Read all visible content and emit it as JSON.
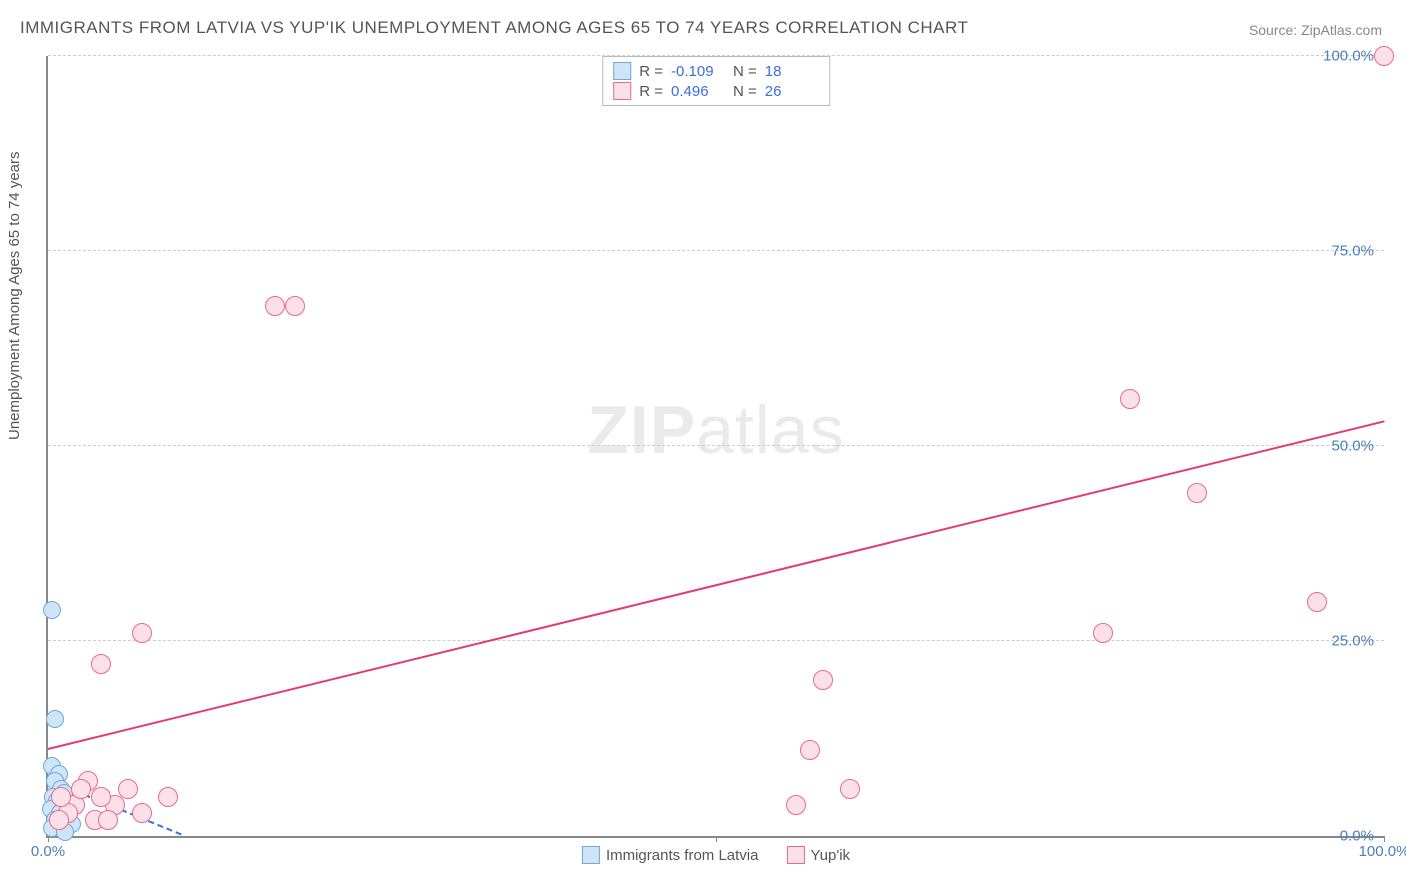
{
  "title": "IMMIGRANTS FROM LATVIA VS YUP'IK UNEMPLOYMENT AMONG AGES 65 TO 74 YEARS CORRELATION CHART",
  "source": "Source: ZipAtlas.com",
  "watermark_bold": "ZIP",
  "watermark_light": "atlas",
  "chart": {
    "type": "scatter",
    "ylabel": "Unemployment Among Ages 65 to 74 years",
    "xlim": [
      0,
      100
    ],
    "ylim": [
      0,
      100
    ],
    "background_color": "#ffffff",
    "grid_color": "#cccccc",
    "axis_color": "#888888",
    "tick_color": "#4a7ebb",
    "tick_fontsize": 15,
    "label_fontsize": 15,
    "title_fontsize": 17,
    "title_color": "#555555",
    "yticks": [
      {
        "v": 0,
        "label": "0.0%"
      },
      {
        "v": 25,
        "label": "25.0%"
      },
      {
        "v": 50,
        "label": "50.0%"
      },
      {
        "v": 75,
        "label": "75.0%"
      },
      {
        "v": 100,
        "label": "100.0%"
      }
    ],
    "xticks": [
      {
        "v": 0,
        "label": "0.0%"
      },
      {
        "v": 50,
        "label": ""
      },
      {
        "v": 100,
        "label": "100.0%"
      }
    ],
    "series": [
      {
        "name": "Immigrants from Latvia",
        "marker_fill": "#cfe4f7",
        "marker_stroke": "#6fa8dc",
        "marker_radius": 8,
        "trend_color": "#3a6fd8",
        "trend_dash": true,
        "R": "-0.109",
        "N": "18",
        "trend": {
          "x0": 0,
          "y0": 7,
          "x1": 10,
          "y1": 0
        },
        "points": [
          {
            "x": 0.3,
            "y": 29
          },
          {
            "x": 0.5,
            "y": 15
          },
          {
            "x": 0.3,
            "y": 9
          },
          {
            "x": 0.8,
            "y": 8
          },
          {
            "x": 0.5,
            "y": 7
          },
          {
            "x": 1.0,
            "y": 6
          },
          {
            "x": 1.2,
            "y": 5.5
          },
          {
            "x": 0.4,
            "y": 5
          },
          {
            "x": 0.7,
            "y": 4.5
          },
          {
            "x": 1.4,
            "y": 4
          },
          {
            "x": 0.2,
            "y": 3.5
          },
          {
            "x": 0.9,
            "y": 3
          },
          {
            "x": 1.6,
            "y": 3
          },
          {
            "x": 0.5,
            "y": 2
          },
          {
            "x": 1.1,
            "y": 2
          },
          {
            "x": 1.8,
            "y": 1.5
          },
          {
            "x": 0.3,
            "y": 1
          },
          {
            "x": 1.3,
            "y": 0.5
          }
        ]
      },
      {
        "name": "Yup'ik",
        "marker_fill": "#fbe0e8",
        "marker_stroke": "#e86a92",
        "marker_radius": 9,
        "trend_color": "#e33a72",
        "trend_dash": false,
        "R": "0.496",
        "N": "26",
        "trend": {
          "x0": 0,
          "y0": 11,
          "x1": 100,
          "y1": 53
        },
        "points": [
          {
            "x": 100,
            "y": 100
          },
          {
            "x": 17,
            "y": 68
          },
          {
            "x": 18.5,
            "y": 68
          },
          {
            "x": 81,
            "y": 56
          },
          {
            "x": 86,
            "y": 44
          },
          {
            "x": 95,
            "y": 30
          },
          {
            "x": 79,
            "y": 26
          },
          {
            "x": 7,
            "y": 26
          },
          {
            "x": 4,
            "y": 22
          },
          {
            "x": 58,
            "y": 20
          },
          {
            "x": 57,
            "y": 11
          },
          {
            "x": 60,
            "y": 6
          },
          {
            "x": 56,
            "y": 4
          },
          {
            "x": 9,
            "y": 5
          },
          {
            "x": 6,
            "y": 6
          },
          {
            "x": 5,
            "y": 4
          },
          {
            "x": 4,
            "y": 5
          },
          {
            "x": 7,
            "y": 3
          },
          {
            "x": 3,
            "y": 7
          },
          {
            "x": 3.5,
            "y": 2
          },
          {
            "x": 2,
            "y": 4
          },
          {
            "x": 2.5,
            "y": 6
          },
          {
            "x": 1.5,
            "y": 3
          },
          {
            "x": 1,
            "y": 5
          },
          {
            "x": 0.8,
            "y": 2
          },
          {
            "x": 4.5,
            "y": 2
          }
        ]
      }
    ],
    "stats_labels": {
      "R": "R =",
      "N": "N ="
    }
  }
}
